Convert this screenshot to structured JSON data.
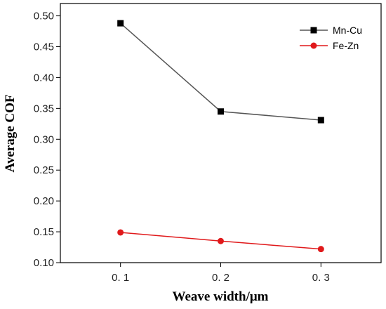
{
  "chart_data": {
    "type": "line",
    "xlabel": "Weave width/μm",
    "ylabel": "Average COF",
    "x": [
      0.1,
      0.2,
      0.3
    ],
    "x_tick_labels": [
      "0. 1",
      "0. 2",
      "0. 3"
    ],
    "xlim": [
      0.04,
      0.36
    ],
    "ylim": [
      0.1,
      0.52
    ],
    "y_ticks": [
      0.1,
      0.15,
      0.2,
      0.25,
      0.3,
      0.35,
      0.4,
      0.45,
      0.5
    ],
    "y_tick_labels": [
      "0.10",
      "0.15",
      "0.20",
      "0.25",
      "0.30",
      "0.35",
      "0.40",
      "0.45",
      "0.50"
    ],
    "grid": false,
    "legend_position": "top-right",
    "series": [
      {
        "name": "Mn-Cu",
        "values": [
          0.488,
          0.345,
          0.331
        ],
        "color": "#000000",
        "line_color": "#555555",
        "marker": "square"
      },
      {
        "name": "Fe-Zn",
        "values": [
          0.149,
          0.135,
          0.122
        ],
        "color": "#e0191b",
        "line_color": "#e0191b",
        "marker": "circle"
      }
    ]
  }
}
